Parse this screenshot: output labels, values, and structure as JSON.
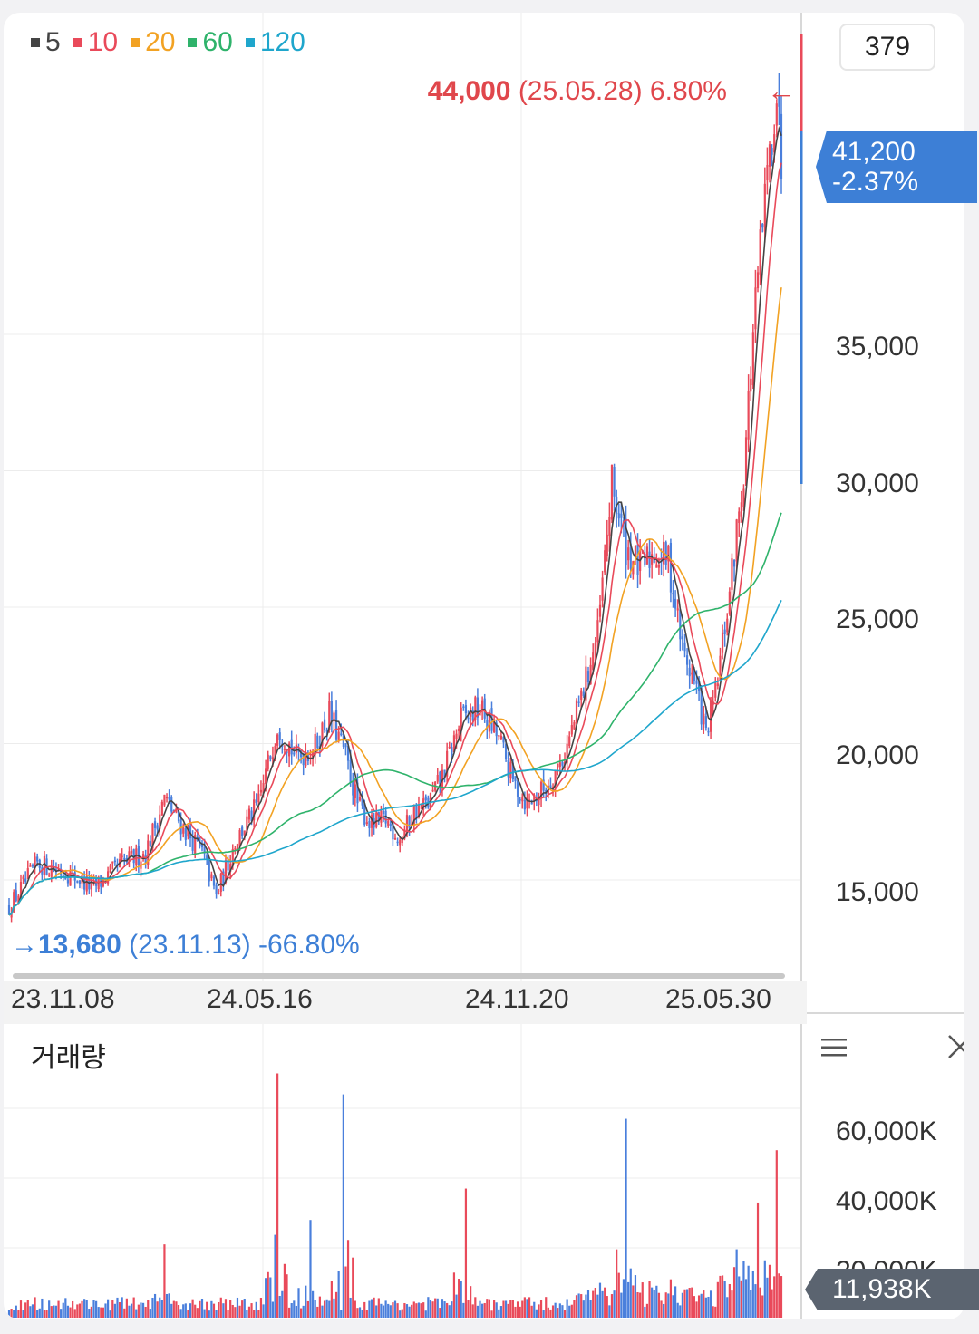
{
  "legend": [
    {
      "label": "5",
      "color": "#444444"
    },
    {
      "label": "10",
      "color": "#e94a5a"
    },
    {
      "label": "20",
      "color": "#f2a223"
    },
    {
      "label": "60",
      "color": "#2fb36b"
    },
    {
      "label": "120",
      "color": "#1fa6cc"
    }
  ],
  "count_box": "379",
  "high": {
    "price": "44,000",
    "date": "(25.05.28)",
    "pct": "6.80%"
  },
  "low": {
    "price": "13,680",
    "date": "(23.11.13)",
    "pct": "-66.80%"
  },
  "current": {
    "price": "41,200",
    "pct": "-2.37%"
  },
  "volume_title": "거래량",
  "volume_current": "11,938K",
  "colors": {
    "up": "#e94a5a",
    "down": "#4a7fdc"
  },
  "chart_data": [
    {
      "type": "candlestick",
      "x_ticks": [
        "23.11.08",
        "24.05.16",
        "24.11.20",
        "25.05.30"
      ],
      "y_ticks": [
        "15,000",
        "20,000",
        "25,000",
        "30,000",
        "35,000"
      ],
      "y_tick_values": [
        15000,
        20000,
        25000,
        30000,
        35000
      ],
      "ylim": [
        11500,
        45500
      ],
      "legend": [
        "5",
        "10",
        "20",
        "60",
        "120"
      ],
      "price_path": [
        {
          "x": 0,
          "y": 14000
        },
        {
          "x": 12,
          "y": 15600
        },
        {
          "x": 24,
          "y": 15300
        },
        {
          "x": 36,
          "y": 14700
        },
        {
          "x": 48,
          "y": 15600
        },
        {
          "x": 58,
          "y": 16000
        },
        {
          "x": 66,
          "y": 18000
        },
        {
          "x": 74,
          "y": 16900
        },
        {
          "x": 82,
          "y": 16000
        },
        {
          "x": 88,
          "y": 14400
        },
        {
          "x": 96,
          "y": 16400
        },
        {
          "x": 106,
          "y": 17800
        },
        {
          "x": 114,
          "y": 20700
        },
        {
          "x": 122,
          "y": 19500
        },
        {
          "x": 130,
          "y": 19900
        },
        {
          "x": 136,
          "y": 21100
        },
        {
          "x": 142,
          "y": 19800
        },
        {
          "x": 148,
          "y": 17800
        },
        {
          "x": 154,
          "y": 17000
        },
        {
          "x": 160,
          "y": 17200
        },
        {
          "x": 166,
          "y": 16500
        },
        {
          "x": 172,
          "y": 17500
        },
        {
          "x": 178,
          "y": 17800
        },
        {
          "x": 184,
          "y": 18800
        },
        {
          "x": 192,
          "y": 20900
        },
        {
          "x": 200,
          "y": 21300
        },
        {
          "x": 208,
          "y": 20200
        },
        {
          "x": 214,
          "y": 18600
        },
        {
          "x": 220,
          "y": 17800
        },
        {
          "x": 228,
          "y": 18400
        },
        {
          "x": 236,
          "y": 19600
        },
        {
          "x": 244,
          "y": 22000
        },
        {
          "x": 250,
          "y": 24000
        },
        {
          "x": 256,
          "y": 29500
        },
        {
          "x": 262,
          "y": 27200
        },
        {
          "x": 268,
          "y": 26400
        },
        {
          "x": 274,
          "y": 27000
        },
        {
          "x": 280,
          "y": 26700
        },
        {
          "x": 286,
          "y": 23500
        },
        {
          "x": 292,
          "y": 22000
        },
        {
          "x": 296,
          "y": 20300
        },
        {
          "x": 300,
          "y": 21800
        },
        {
          "x": 306,
          "y": 25500
        },
        {
          "x": 312,
          "y": 30000
        },
        {
          "x": 316,
          "y": 35000
        },
        {
          "x": 320,
          "y": 39000
        },
        {
          "x": 324,
          "y": 42500
        },
        {
          "x": 326,
          "y": 44000
        },
        {
          "x": 328,
          "y": 41200
        }
      ],
      "note_high": "44,000 (25.05.28) 6.80%",
      "note_low": "13,680 (23.11.13) -66.80%"
    },
    {
      "type": "bar",
      "title": "거래량",
      "y_ticks": [
        "20,000K",
        "40,000K",
        "60,000K"
      ],
      "y_tick_values": [
        20000,
        40000,
        60000
      ],
      "unit": "K",
      "ylim": [
        0,
        72000
      ],
      "spikes": [
        {
          "x": 66,
          "value": 21000
        },
        {
          "x": 114,
          "value": 70000
        },
        {
          "x": 128,
          "value": 28000
        },
        {
          "x": 142,
          "value": 64000
        },
        {
          "x": 194,
          "value": 37000
        },
        {
          "x": 262,
          "value": 57000
        },
        {
          "x": 318,
          "value": 33000
        },
        {
          "x": 326,
          "value": 48000
        }
      ],
      "last_value": 11938
    }
  ]
}
